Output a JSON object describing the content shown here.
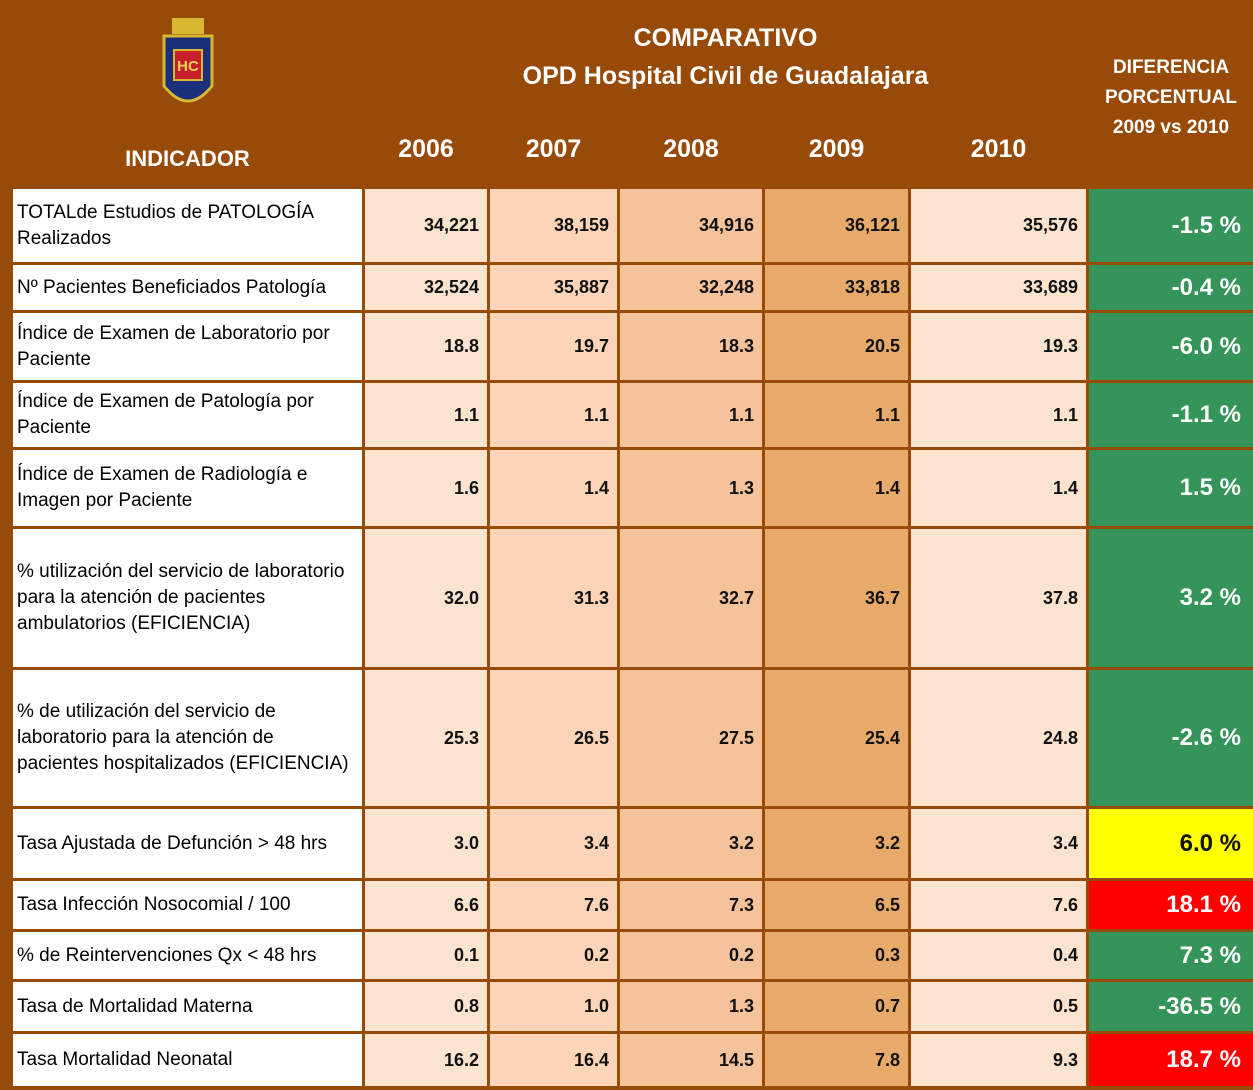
{
  "header": {
    "indicator": "INDICADOR",
    "title": "COMPARATIVO",
    "subtitle": "OPD Hospital Civil de Guadalajara",
    "logo_text": "HC",
    "difference": [
      "DIFERENCIA",
      "PORCENTUAL",
      "2009 vs 2010"
    ],
    "years": [
      "2006",
      "2007",
      "2008",
      "2009",
      "2010"
    ]
  },
  "table": {
    "rows": [
      {
        "label": "TOTALde Estudios de PATOLOGÍA Realizados",
        "values": [
          "34,221",
          "38,159",
          "34,916",
          "36,121",
          "35,576"
        ],
        "diff": "-1.5 %",
        "color": "#35945a"
      },
      {
        "label": "Nº Pacientes Beneficiados Patología",
        "values": [
          "32,524",
          "35,887",
          "32,248",
          "33,818",
          "33,689"
        ],
        "diff": "-0.4 %",
        "color": "#35945a"
      },
      {
        "label": "Índice de Examen de Laboratorio por Paciente",
        "values": [
          "18.8",
          "19.7",
          "18.3",
          "20.5",
          "19.3"
        ],
        "diff": "-6.0 %",
        "color": "#35945a"
      },
      {
        "label": "Índice de Examen de Patología por Paciente",
        "values": [
          "1.1",
          "1.1",
          "1.1",
          "1.1",
          "1.1"
        ],
        "diff": "-1.1 %",
        "color": "#35945a"
      },
      {
        "label": "Índice de Examen de Radiología e Imagen por Paciente",
        "values": [
          "1.6",
          "1.4",
          "1.3",
          "1.4",
          "1.4"
        ],
        "diff": "1.5 %",
        "color": "#35945a"
      },
      {
        "label": "% utilización del servicio de laboratorio para la atención de pacientes ambulatorios (EFICIENCIA)",
        "values": [
          "32.0",
          "31.3",
          "32.7",
          "36.7",
          "37.8"
        ],
        "diff": "3.2 %",
        "color": "#35945a"
      },
      {
        "label": "% de utilización del servicio de laboratorio para la atención de pacientes hospitalizados (EFICIENCIA)",
        "values": [
          "25.3",
          "26.5",
          "27.5",
          "25.4",
          "24.8"
        ],
        "diff": "-2.6 %",
        "color": "#35945a"
      },
      {
        "label": "Tasa Ajustada de Defunción > 48 hrs",
        "values": [
          "3.0",
          "3.4",
          "3.2",
          "3.2",
          "3.4"
        ],
        "diff": "6.0 %",
        "color": "#ffff00"
      },
      {
        "label": "Tasa Infección Nosocomial / 100",
        "values": [
          "6.6",
          "7.6",
          "7.3",
          "6.5",
          "7.6"
        ],
        "diff": "18.1 %",
        "color": "#ff0000"
      },
      {
        "label": "% de Reintervenciones Qx < 48 hrs",
        "values": [
          "0.1",
          "0.2",
          "0.2",
          "0.3",
          "0.4"
        ],
        "diff": "7.3 %",
        "color": "#35945a"
      },
      {
        "label": "Tasa de Mortalidad Materna",
        "values": [
          "0.8",
          "1.0",
          "1.3",
          "0.7",
          "0.5"
        ],
        "diff": "-36.5 %",
        "color": "#35945a"
      },
      {
        "label": "Tasa Mortalidad Neonatal",
        "values": [
          "16.2",
          "16.4",
          "14.5",
          "7.8",
          "9.3"
        ],
        "diff": "18.7 %",
        "color": "#ff0000"
      }
    ]
  }
}
